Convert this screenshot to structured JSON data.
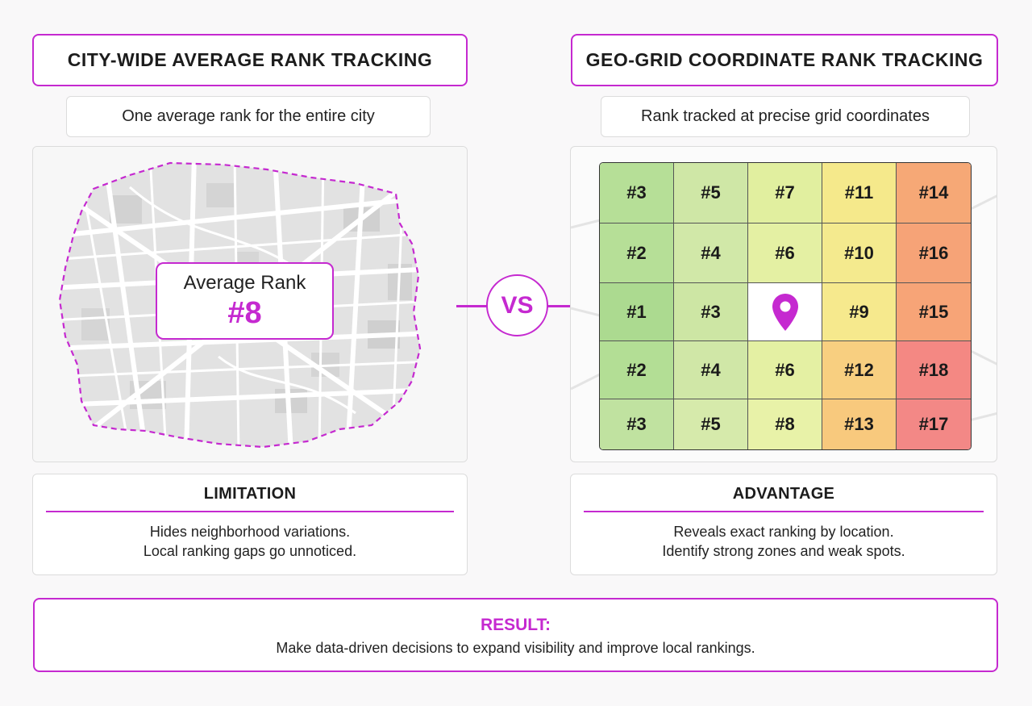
{
  "left": {
    "title": "CITY-WIDE AVERAGE RANK TRACKING",
    "subtitle": "One average rank for the entire city",
    "avg_label": "Average Rank",
    "avg_value": "#8",
    "info_head": "LIMITATION",
    "info_line1": "Hides neighborhood variations.",
    "info_line2": "Local ranking gaps go unnoticed."
  },
  "vs": "VS",
  "right": {
    "title": "GEO-GRID COORDINATE RANK TRACKING",
    "subtitle": "Rank tracked at precise grid coordinates",
    "info_head": "ADVANTAGE",
    "info_line1": "Reveals exact ranking by location.",
    "info_line2": "Identify strong zones and weak spots."
  },
  "grid": {
    "rows": [
      [
        "#3",
        "#5",
        "#7",
        "#11",
        "#14"
      ],
      [
        "#2",
        "#4",
        "#6",
        "#10",
        "#16"
      ],
      [
        "#1",
        "#3",
        "",
        "#9",
        "#15"
      ],
      [
        "#2",
        "#4",
        "#6",
        "#12",
        "#18"
      ],
      [
        "#3",
        "#5",
        "#8",
        "#13",
        "#17"
      ]
    ],
    "colors": [
      [
        "#b6df97",
        "#cfe7a6",
        "#e1ef9f",
        "#f5e98b",
        "#f6a876"
      ],
      [
        "#b6df97",
        "#d1e8a8",
        "#e4f0a3",
        "#f4ea8e",
        "#f6a377"
      ],
      [
        "#acda90",
        "#cde6a4",
        "#ffffff",
        "#f6e98d",
        "#f7a477"
      ],
      [
        "#b3de95",
        "#d0e7a7",
        "#e4f0a3",
        "#f8cf80",
        "#f48883"
      ],
      [
        "#c0e2a0",
        "#d6eaab",
        "#e8f2a8",
        "#f8c97d",
        "#f38886"
      ]
    ],
    "pin_icon": "map-pin-icon",
    "pin_color": "#c529d0"
  },
  "result": {
    "head": "RESULT:",
    "text": "Make data-driven decisions to expand visibility and improve local rankings."
  },
  "accent": "#c529d0"
}
